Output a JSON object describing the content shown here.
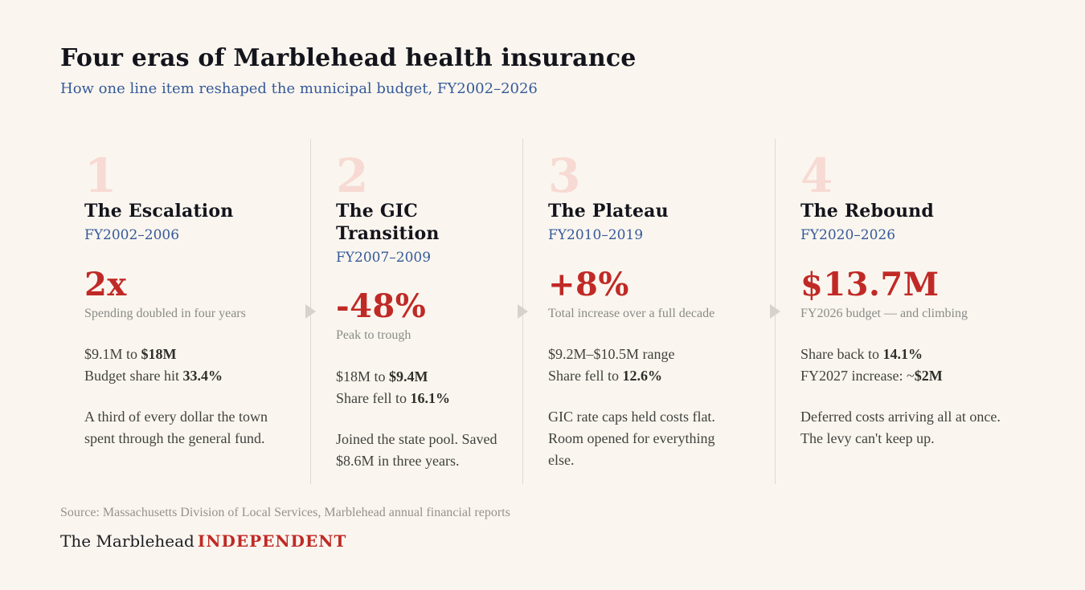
{
  "header": {
    "title": "Four eras of Marblehead health insurance",
    "subtitle": "How one line item reshaped the municipal budget, FY2002–2026"
  },
  "eras": [
    {
      "number": "1",
      "title": "The Escalation",
      "range": "FY2002–2006",
      "stat": "2x",
      "caption": "Spending doubled in four years",
      "facts": [
        [
          {
            "text": "$9.1M to ",
            "bold": false
          },
          {
            "text": "$18M",
            "bold": true
          }
        ],
        [
          {
            "text": "Budget share hit ",
            "bold": false
          },
          {
            "text": "33.4%",
            "bold": true
          }
        ]
      ],
      "note": "A third of every dollar the town spent through the general fund."
    },
    {
      "number": "2",
      "title": "The GIC\nTransition",
      "range": "FY2007–2009",
      "stat": "-48%",
      "caption": "Peak to trough",
      "facts": [
        [
          {
            "text": "$18M to ",
            "bold": false
          },
          {
            "text": "$9.4M",
            "bold": true
          }
        ],
        [
          {
            "text": "Share fell to ",
            "bold": false
          },
          {
            "text": "16.1%",
            "bold": true
          }
        ]
      ],
      "note": "Joined the state pool. Saved $8.6M in three years."
    },
    {
      "number": "3",
      "title": "The Plateau",
      "range": "FY2010–2019",
      "stat": "+8%",
      "caption": "Total increase over a full decade",
      "facts": [
        [
          {
            "text": "$9.2M–$10.5M range",
            "bold": false
          }
        ],
        [
          {
            "text": "Share fell to ",
            "bold": false
          },
          {
            "text": "12.6%",
            "bold": true
          }
        ]
      ],
      "note": "GIC rate caps held costs flat. Room opened for everything else."
    },
    {
      "number": "4",
      "title": "The Rebound",
      "range": "FY2020–2026",
      "stat": "$13.7M",
      "caption": "FY2026 budget — and climbing",
      "facts": [
        [
          {
            "text": "Share back to ",
            "bold": false
          },
          {
            "text": "14.1%",
            "bold": true
          }
        ],
        [
          {
            "text": "FY2027 increase: ~",
            "bold": false
          },
          {
            "text": "$2M",
            "bold": true
          }
        ]
      ],
      "note": "Deferred costs arriving all at once. The levy can't keep up."
    }
  ],
  "footer": {
    "source": "Source: Massachusetts Division of Local Services, Marblehead annual financial reports",
    "publication_name": "The Marblehead",
    "publication_accent": "INDEPENDENT"
  },
  "colors": {
    "background": "#FAF6EF",
    "headline": "#14141C",
    "accent_blue": "#35599A",
    "accent_red": "#C02A26",
    "era_number_pink": "#F7DAD3",
    "muted_gray": "#8A8A87",
    "body_text": "#42413E",
    "divider": "#DEDAD2",
    "arrow": "#D8D3CA",
    "source_gray": "#96928B"
  }
}
